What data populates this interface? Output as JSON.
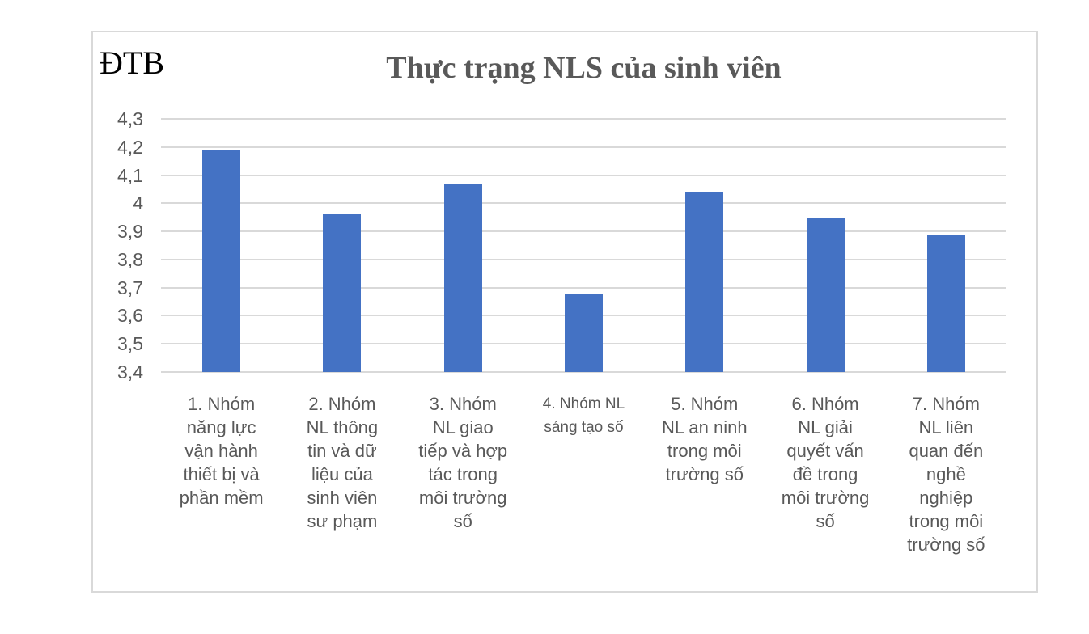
{
  "window": {
    "background": "#ffffff"
  },
  "chart_frame": {
    "border_color": "#d9d9d9",
    "background": "#ffffff"
  },
  "chart_data": {
    "type": "bar",
    "title": "Thực trạng NLS của sinh viên",
    "title_color": "#595959",
    "ylabel": "ĐTB",
    "ylabel_color": "#000000",
    "xlabel": "",
    "categories": [
      "1. Nhóm\nnăng lực\nvận hành\nthiết bị và\nphần mềm",
      "2. Nhóm\nNL thông\ntin và dữ\nliệu của\nsinh viên\nsư phạm",
      "3. Nhóm\nNL giao\ntiếp và hợp\ntác trong\nmôi trường\nsố",
      "4. Nhóm NL\nsáng tạo số",
      "5. Nhóm\nNL an ninh\ntrong môi\ntrường số",
      "6. Nhóm\nNL giải\nquyết vấn\nđề trong\nmôi trường\nsố",
      "7. Nhóm\nNL liên\nquan đến\nnghề\nnghiệp\ntrong môi\ntrường số"
    ],
    "values": [
      4.19,
      3.96,
      4.07,
      3.68,
      4.04,
      3.95,
      3.89
    ],
    "ylim": [
      3.4,
      4.3
    ],
    "ytick_labels": [
      "4,3",
      "4,2",
      "4,1",
      "4",
      "3,9",
      "3,8",
      "3,7",
      "3,6",
      "3,5",
      "3,4"
    ],
    "bar_color": "#4472c4",
    "gridline_color": "#d9d9d9",
    "tick_label_color": "#595959",
    "grid": true,
    "legend": "none",
    "small_category_indices": [
      3
    ]
  }
}
